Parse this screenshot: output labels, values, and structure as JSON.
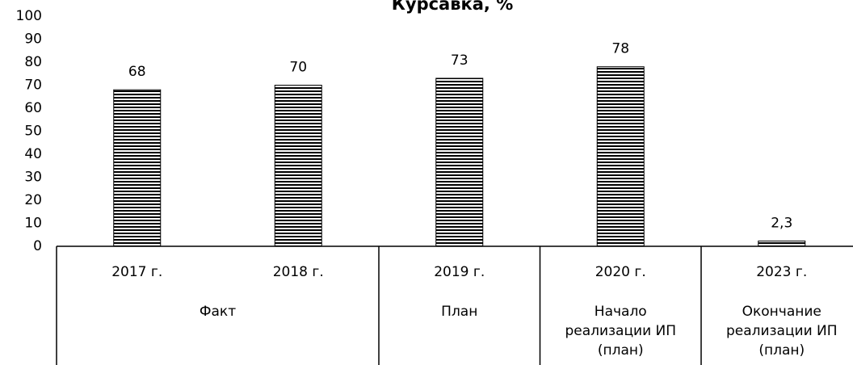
{
  "chart_data": {
    "type": "bar",
    "title": "Курсавка, %",
    "categories": [
      "2017 г.",
      "2018 г.",
      "2019 г.",
      "2020 г.",
      "2023 г."
    ],
    "category_groups": [
      "Факт",
      "Факт",
      "План",
      "Начало реализации ИП (план)",
      "Окончание реализации ИП (план)"
    ],
    "values": [
      68,
      70,
      73,
      78,
      2.3
    ],
    "value_labels": [
      "68",
      "70",
      "73",
      "78",
      "2,3"
    ],
    "color": "#000000",
    "ylim": [
      0,
      100
    ],
    "yticks": [
      0,
      10,
      20,
      30,
      40,
      50,
      60,
      70,
      80,
      90,
      100
    ],
    "grid": false
  }
}
